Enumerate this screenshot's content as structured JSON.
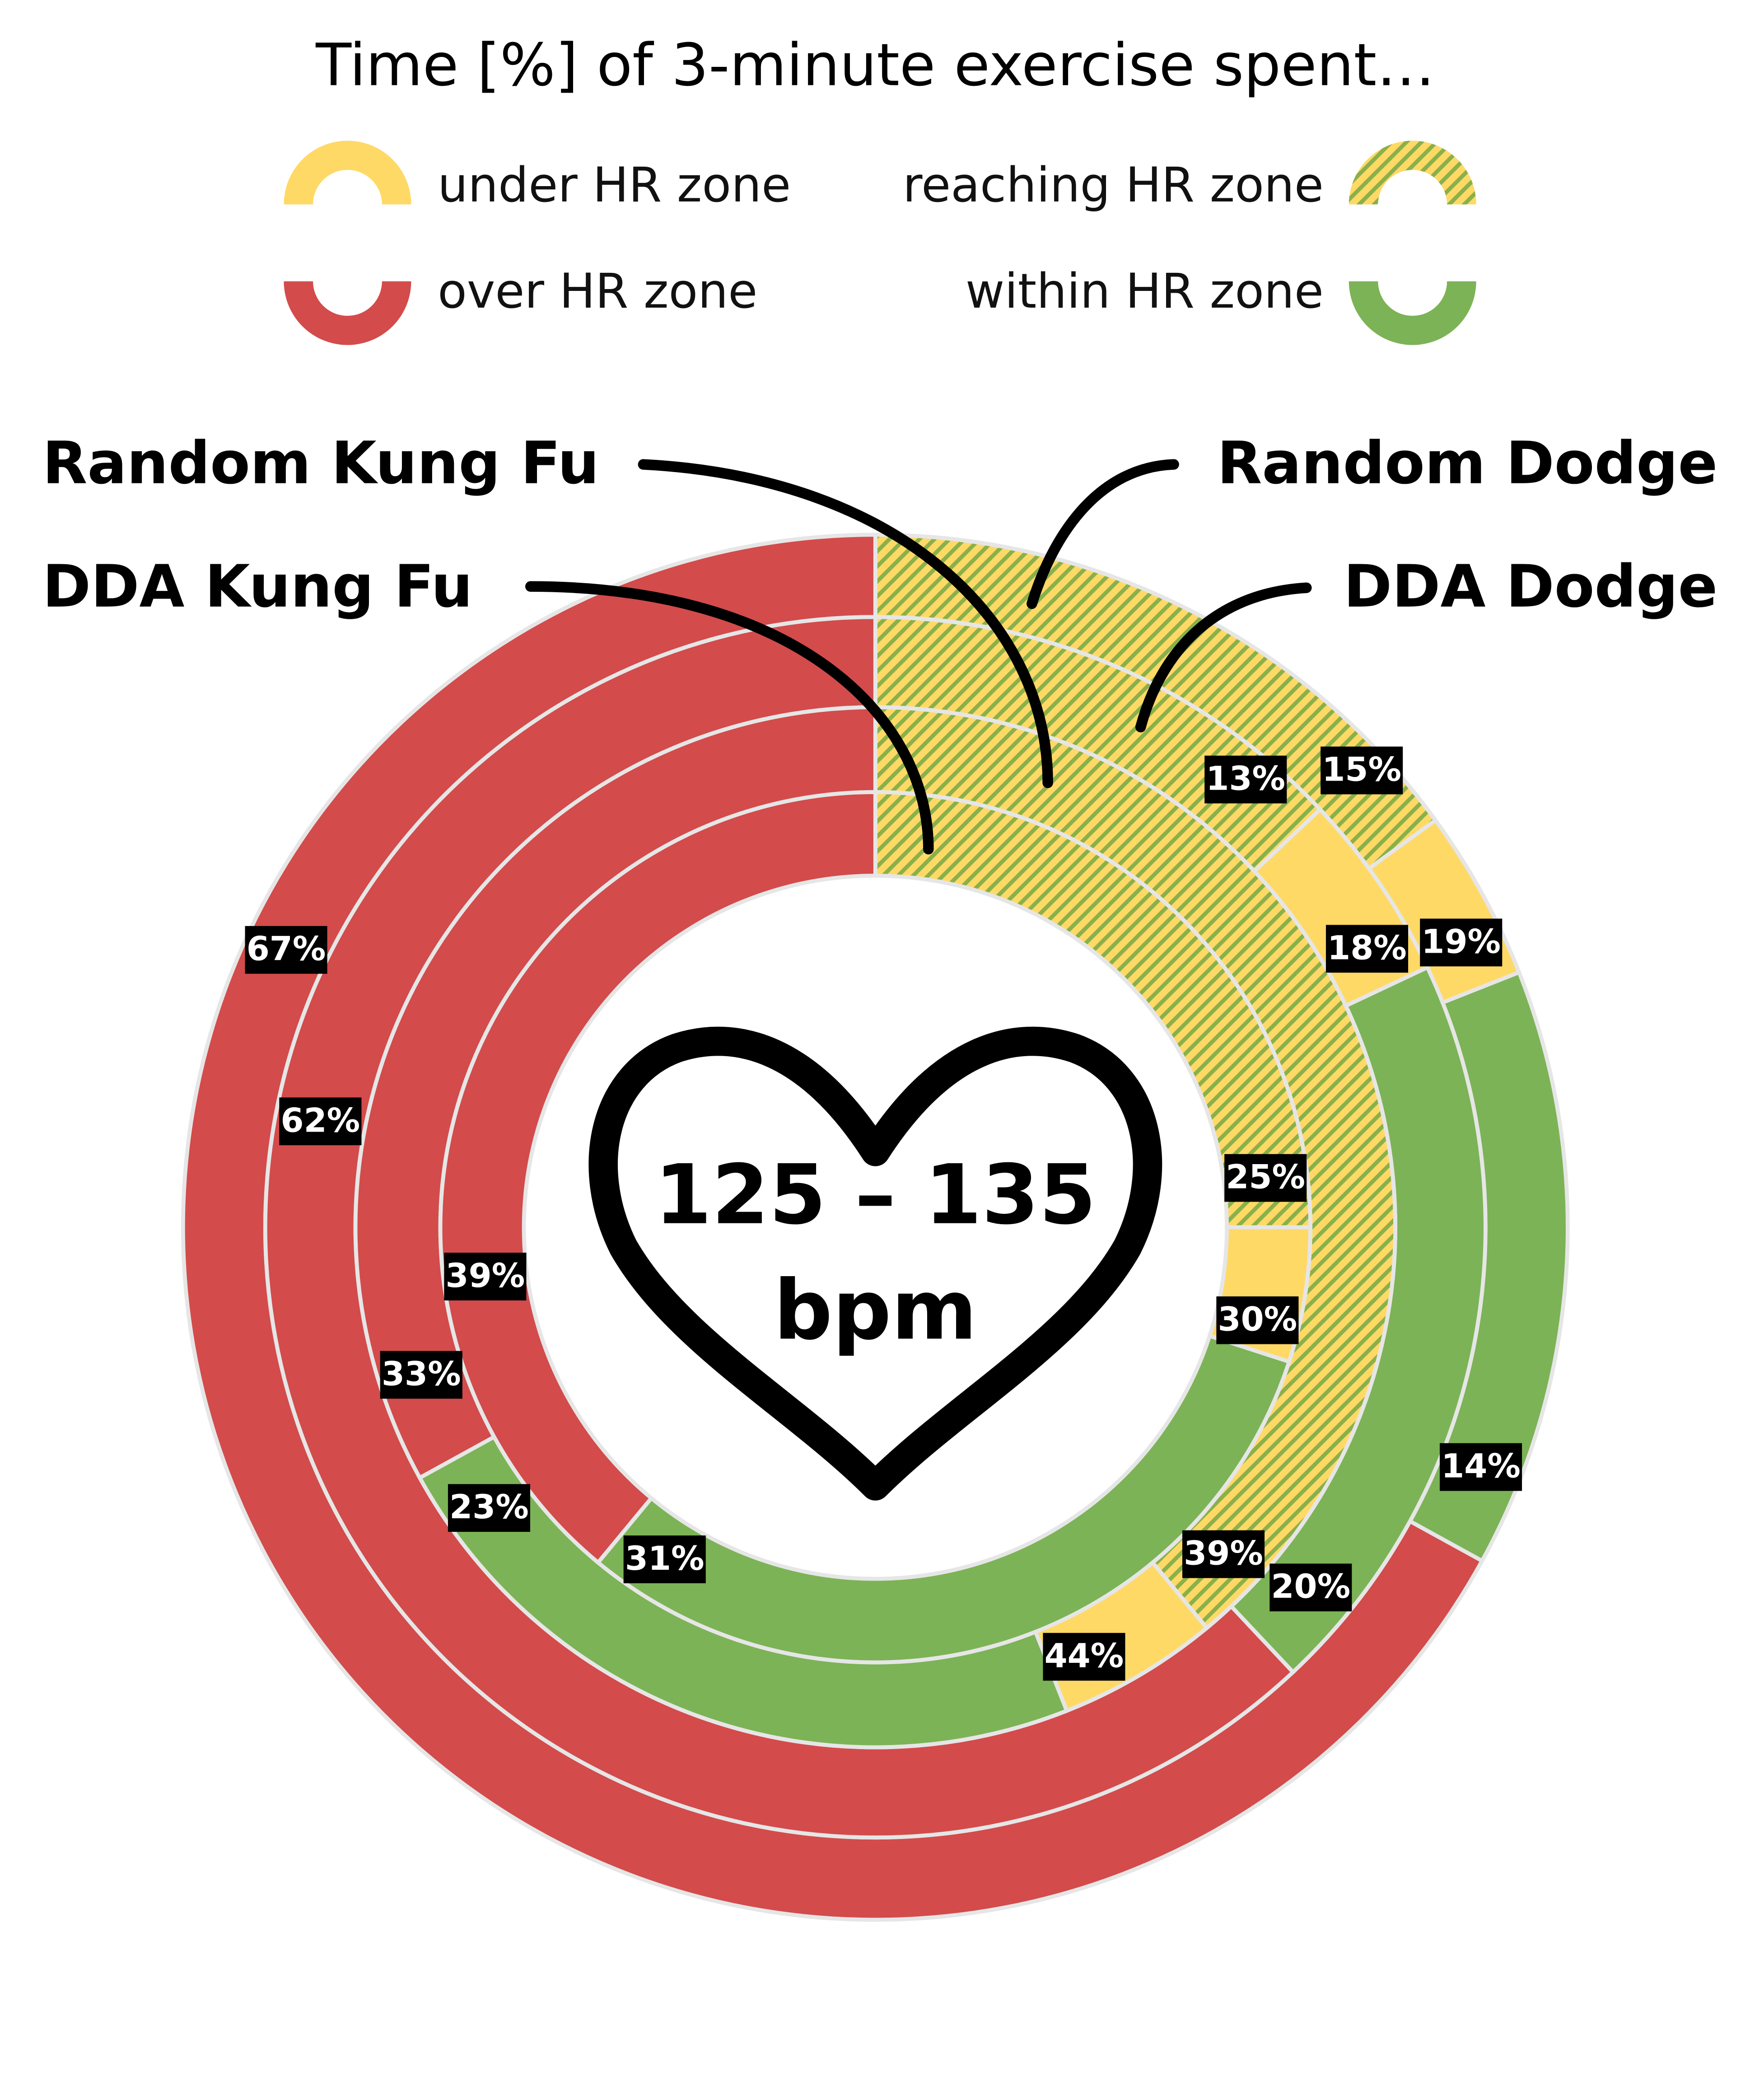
{
  "chart_data": {
    "type": "donut",
    "title": "Time [%] of 3-minute exercise spent…",
    "center_label": "125 – 135",
    "center_unit": "bpm",
    "categories": [
      "under HR zone",
      "reaching HR zone",
      "over HR zone",
      "within HR zone"
    ],
    "colors": [
      "#ffd966",
      "#ffd966",
      "#d34b4b",
      "#7cb356"
    ],
    "series": [
      {
        "name": "Random Dodge",
        "values": [
          19,
          15,
          67,
          14
        ],
        "value_labels": [
          "19%",
          "15%",
          "67%",
          "14%"
        ]
      },
      {
        "name": "DDA Dodge",
        "values": [
          18,
          13,
          62,
          20
        ],
        "value_labels": [
          "18%",
          "13%",
          "62%",
          "20%"
        ]
      },
      {
        "name": "Random Kung Fu",
        "values": [
          44,
          39,
          33,
          23
        ],
        "value_labels": [
          "44%",
          "39%",
          "33%",
          "23%"
        ]
      },
      {
        "name": "DDA Kung Fu",
        "values": [
          30,
          25,
          39,
          31
        ],
        "value_labels": [
          "30%",
          "25%",
          "39%",
          "31%"
        ]
      }
    ]
  }
}
